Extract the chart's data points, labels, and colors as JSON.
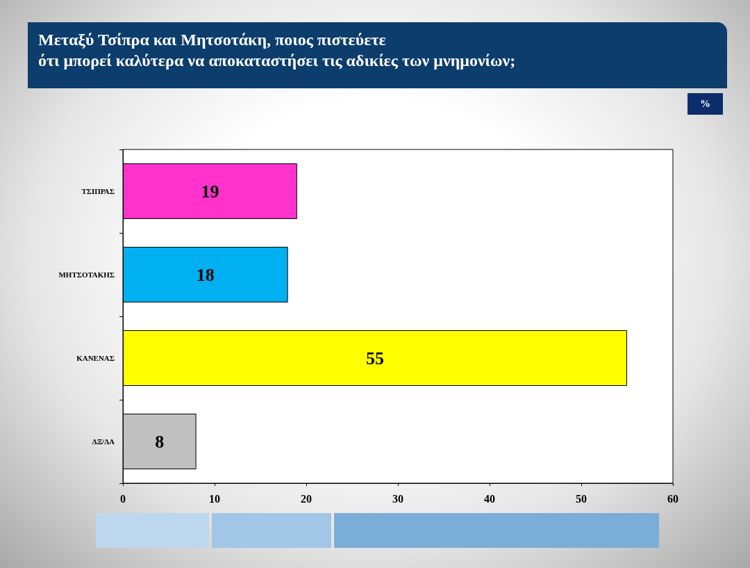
{
  "chart_data": {
    "type": "bar",
    "orientation": "horizontal",
    "title": "Μεταξύ Τσίπρα και Μητσοτάκη, ποιος πιστεύετε\nότι μπορεί καλύτερα να αποκαταστήσει τις αδικίες των μνημονίων;",
    "annotations": [
      "%"
    ],
    "categories": [
      "ΤΣΙΠΡΑΣ",
      "ΜΗΤΣΟΤΑΚΗΣ",
      "ΚΑΝΕΝΑΣ",
      "ΔΞ/ΔΑ"
    ],
    "values": [
      19,
      18,
      55,
      8
    ],
    "colors": [
      "#ff33cc",
      "#00b0f0",
      "#ffff00",
      "#c0c0c0"
    ],
    "xlim": [
      0,
      60
    ],
    "xticks": [
      0,
      10,
      20,
      30,
      40,
      50,
      60
    ],
    "data_labels": true,
    "grid": false
  }
}
